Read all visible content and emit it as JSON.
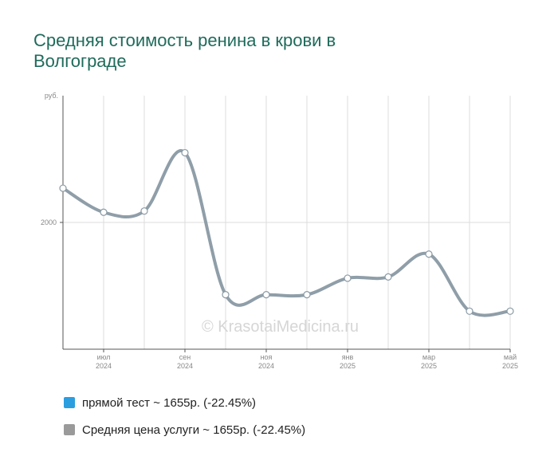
{
  "title": "Средняя стоимость ренина в крови в Волгограде",
  "watermark": "© KrasotaiMedicina.ru",
  "chart_data": {
    "type": "line",
    "y_unit_label": "руб.",
    "y_tick_labels": [
      "2000"
    ],
    "y_ticks": [
      2000
    ],
    "ylim": [
      1000,
      3000
    ],
    "x_index_range": [
      -1,
      10
    ],
    "x_ticks": [
      {
        "index": 0,
        "line1": "июл",
        "line2": "2024"
      },
      {
        "index": 2,
        "line1": "сен",
        "line2": "2024"
      },
      {
        "index": 4,
        "line1": "ноя",
        "line2": "2024"
      },
      {
        "index": 6,
        "line1": "янв",
        "line2": "2025"
      },
      {
        "index": 8,
        "line1": "мар",
        "line2": "2025"
      },
      {
        "index": 10,
        "line1": "май",
        "line2": "2025"
      }
    ],
    "x_gridlines": [
      -1,
      0,
      1,
      2,
      3,
      4,
      5,
      6,
      7,
      8,
      9,
      10
    ],
    "y_gridlines": [
      2000
    ],
    "grid": true,
    "series": [
      {
        "color": "#8f9ea8",
        "x": [
          -1,
          0,
          1,
          2,
          3,
          4,
          5,
          6,
          7,
          8,
          9,
          10
        ],
        "values": [
          2270,
          2080,
          2090,
          2550,
          1430,
          1430,
          1430,
          1560,
          1570,
          1750,
          1300,
          1300
        ]
      }
    ]
  },
  "legend": [
    {
      "label": "прямой тест ~ 1655р. (-22.45%)",
      "color": "#2b9ee0"
    },
    {
      "label": "Средняя цена услуги ~ 1655р. (-22.45%)",
      "color": "#9a9a9a"
    }
  ]
}
